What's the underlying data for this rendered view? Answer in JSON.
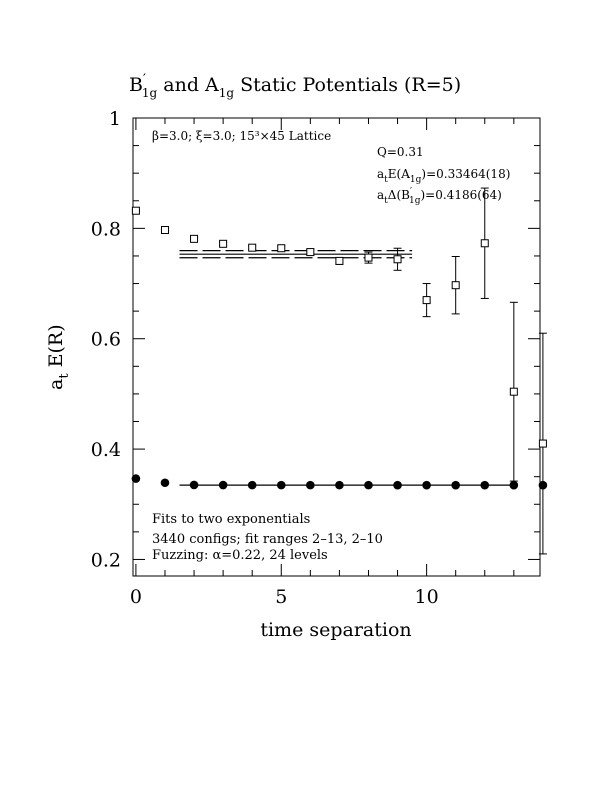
{
  "chart_data": {
    "type": "scatter",
    "title": {
      "b": "B",
      "prime": "′",
      "s1": "1g",
      "and": " and A",
      "s2": "1g",
      "rest": " Static Potentials (R=5)"
    },
    "xlabel": "time separation",
    "ylabel": {
      "main": "a",
      "sub": "t",
      "rest": " E(R)"
    },
    "xlim": [
      -0.1,
      13.9
    ],
    "ylim": [
      0.17,
      1.0
    ],
    "x_ticks": [
      0,
      5,
      10
    ],
    "x_tick_labels": [
      "0",
      "5",
      "10"
    ],
    "y_ticks": [
      0.2,
      0.4,
      0.6,
      0.8,
      1.0
    ],
    "y_tick_labels": [
      "0.2",
      "0.4",
      "0.6",
      "0.8",
      "1"
    ],
    "annotations": {
      "lattice": "β=3.0; ξ=3.0; 15³×45 Lattice",
      "q": "Q=0.31",
      "energy": {
        "a": "a",
        "t": "t",
        "mid": "E(A",
        "sub": "1g",
        "val": ")=0.33464(18)"
      },
      "delta": {
        "a": "a",
        "t": "t",
        "mid": "Δ(B",
        "prime": "′",
        "sub": "1g",
        "val": ")=0.4186(64)"
      },
      "fits": "Fits to two exponentials",
      "configs": "3440 configs; fit ranges 2–13, 2–10",
      "fuzzing": "Fuzzing: α=0.22, 24 levels"
    },
    "series": [
      {
        "marker": "open-square",
        "x": [
          0,
          1,
          2,
          3,
          4,
          5,
          6,
          7,
          8,
          9,
          10,
          11,
          12,
          13,
          14
        ],
        "y": [
          0.832,
          0.797,
          0.781,
          0.772,
          0.765,
          0.764,
          0.757,
          0.741,
          0.747,
          0.744,
          0.67,
          0.697,
          0.773,
          0.504,
          0.41
        ],
        "err": [
          0.002,
          0.002,
          0.002,
          0.003,
          0.003,
          0.004,
          0.005,
          0.006,
          0.01,
          0.02,
          0.03,
          0.052,
          0.1,
          0.162,
          0.2
        ]
      },
      {
        "marker": "filled-circle",
        "x": [
          0,
          1,
          2,
          3,
          4,
          5,
          6,
          7,
          8,
          9,
          10,
          11,
          12,
          13,
          14
        ],
        "y": [
          0.3465,
          0.339,
          0.335,
          0.3348,
          0.3347,
          0.3347,
          0.3347,
          0.3347,
          0.3347,
          0.3346,
          0.3346,
          0.3346,
          0.3346,
          0.3346,
          0.3346
        ],
        "err": [
          0.0,
          0.0,
          0.0,
          0.0,
          0.0,
          0.0,
          0.0,
          0.0,
          0.0,
          0.0,
          0.0,
          0.0,
          0.0,
          0.0,
          0.0
        ]
      }
    ],
    "fit_lines": [
      {
        "style": "solid",
        "x": [
          1.5,
          13.0
        ],
        "y": 0.33464
      },
      {
        "style": "solid",
        "x": [
          1.5,
          9.5
        ],
        "y": 0.7532
      },
      {
        "style": "dashed",
        "x": [
          1.5,
          9.5
        ],
        "y": 0.7468
      },
      {
        "style": "dashed",
        "x": [
          1.5,
          9.5
        ],
        "y": 0.7596
      }
    ]
  }
}
